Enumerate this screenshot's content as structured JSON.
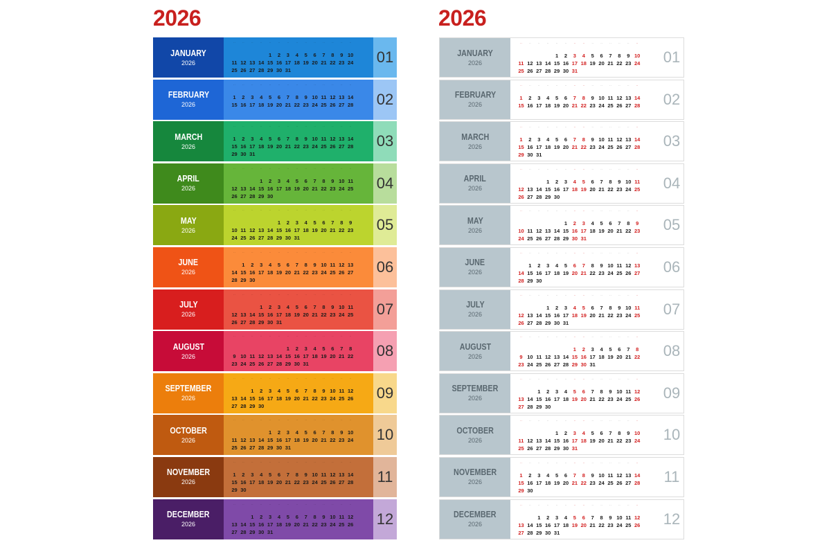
{
  "year_title": "2026",
  "months": [
    {
      "name": "JANUARY",
      "year": "2026",
      "num": "01",
      "first": 4,
      "days": 31,
      "block": "#1147a8",
      "band": "#1e86d8",
      "numbg": "#6ab8ee"
    },
    {
      "name": "FEBRUARY",
      "year": "2026",
      "num": "02",
      "first": 0,
      "days": 28,
      "block": "#1e66d6",
      "band": "#3a88e8",
      "numbg": "#9cc6f5"
    },
    {
      "name": "MARCH",
      "year": "2026",
      "num": "03",
      "first": 0,
      "days": 31,
      "block": "#16873d",
      "band": "#1fb06b",
      "numbg": "#8fdcb9"
    },
    {
      "name": "APRIL",
      "year": "2026",
      "num": "04",
      "first": 3,
      "days": 30,
      "block": "#3f8a1c",
      "band": "#66b53a",
      "numbg": "#b8dd9c"
    },
    {
      "name": "MAY",
      "year": "2026",
      "num": "05",
      "first": 5,
      "days": 31,
      "block": "#8aa812",
      "band": "#bcd42e",
      "numbg": "#dfeb96"
    },
    {
      "name": "JUNE",
      "year": "2026",
      "num": "06",
      "first": 1,
      "days": 30,
      "block": "#ef5316",
      "band": "#fb8b3a",
      "numbg": "#fcc09a"
    },
    {
      "name": "JULY",
      "year": "2026",
      "num": "07",
      "first": 3,
      "days": 31,
      "block": "#d81e1e",
      "band": "#ea5343",
      "numbg": "#f39f98"
    },
    {
      "name": "AUGUST",
      "year": "2026",
      "num": "08",
      "first": 6,
      "days": 31,
      "block": "#c70c38",
      "band": "#e84464",
      "numbg": "#f5a0b2"
    },
    {
      "name": "SEPTEMBER",
      "year": "2026",
      "num": "09",
      "first": 2,
      "days": 30,
      "block": "#ec7e0c",
      "band": "#f6a915",
      "numbg": "#f8d88b"
    },
    {
      "name": "OCTOBER",
      "year": "2026",
      "num": "10",
      "first": 4,
      "days": 31,
      "block": "#bf5a10",
      "band": "#e0922d",
      "numbg": "#efca98"
    },
    {
      "name": "NOVEMBER",
      "year": "2026",
      "num": "11",
      "first": 0,
      "days": 30,
      "block": "#8a3a10",
      "band": "#c36f3a",
      "numbg": "#e1b59a"
    },
    {
      "name": "DECEMBER",
      "year": "2026",
      "num": "12",
      "first": 2,
      "days": 31,
      "block": "#4a1e66",
      "band": "#7f4aa8",
      "numbg": "#c3a8d8"
    }
  ]
}
